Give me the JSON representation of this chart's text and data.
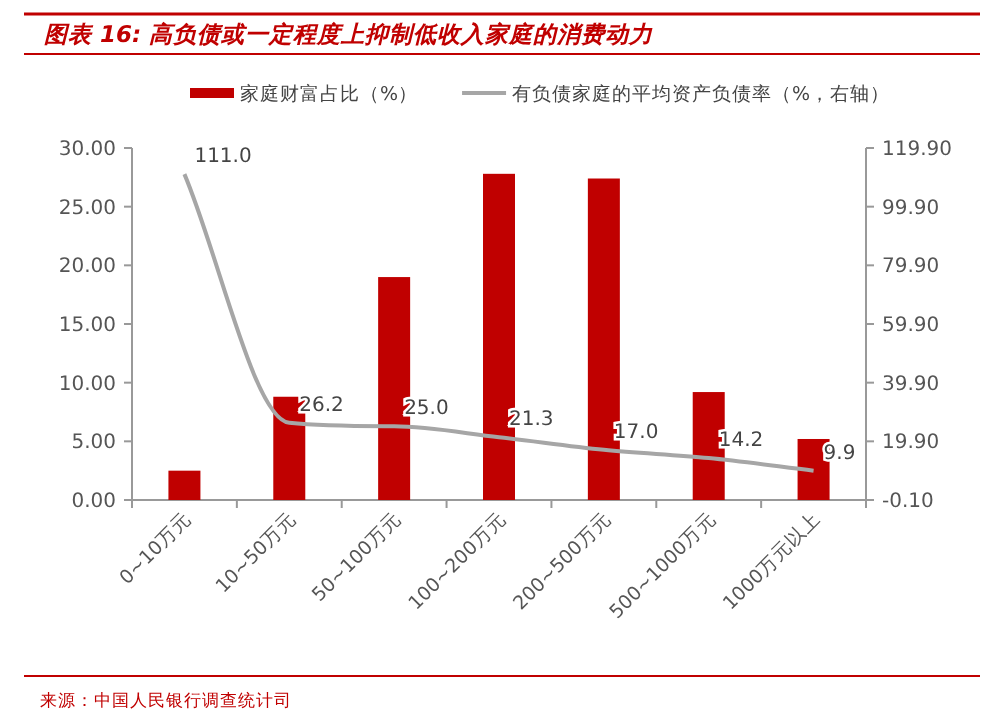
{
  "chart_data": {
    "type": "bar",
    "title": "图表 16: 高负债或一定程度上抑制低收入家庭的消费动力",
    "categories": [
      "0~10万元",
      "10~50万元",
      "50~100万元",
      "100~200万元",
      "200~500万元",
      "500~1000万元",
      "1000万元以上"
    ],
    "series": [
      {
        "name": "家庭财富占比（%）",
        "color": "#c00000",
        "values": [
          2.5,
          8.8,
          19.0,
          27.8,
          27.4,
          9.2,
          5.2
        ]
      },
      {
        "name": "有负债家庭的平均资产负债率（%，右轴）",
        "type": "line",
        "axis": "y2",
        "color": "#a6a6a6",
        "values": [
          111.0,
          26.2,
          25.0,
          21.3,
          17.0,
          14.2,
          9.9
        ],
        "value_labels": [
          "111.0",
          "26.2",
          "25.0",
          "21.3",
          "17.0",
          "14.2",
          "9.9"
        ]
      }
    ],
    "ylim": [
      0,
      30
    ],
    "yticks": [
      {
        "value": 0,
        "label": "0.00"
      },
      {
        "value": 5,
        "label": "5.00"
      },
      {
        "value": 10,
        "label": "10.00"
      },
      {
        "value": 15,
        "label": "15.00"
      },
      {
        "value": 20,
        "label": "20.00"
      },
      {
        "value": 25,
        "label": "25.00"
      },
      {
        "value": 30,
        "label": "30.00"
      }
    ],
    "y2lim": [
      -0.1,
      119.9
    ],
    "y2ticks": [
      {
        "value": -0.1,
        "label": "-0.10"
      },
      {
        "value": 19.9,
        "label": "19.90"
      },
      {
        "value": 39.9,
        "label": "39.90"
      },
      {
        "value": 59.9,
        "label": "59.90"
      },
      {
        "value": 79.9,
        "label": "79.90"
      },
      {
        "value": 99.9,
        "label": "99.90"
      },
      {
        "value": 119.9,
        "label": "119.90"
      }
    ],
    "legend": "top",
    "grid": false,
    "marker": "none",
    "annotations": [
      "来源：中国人民银行调查统计司"
    ]
  }
}
